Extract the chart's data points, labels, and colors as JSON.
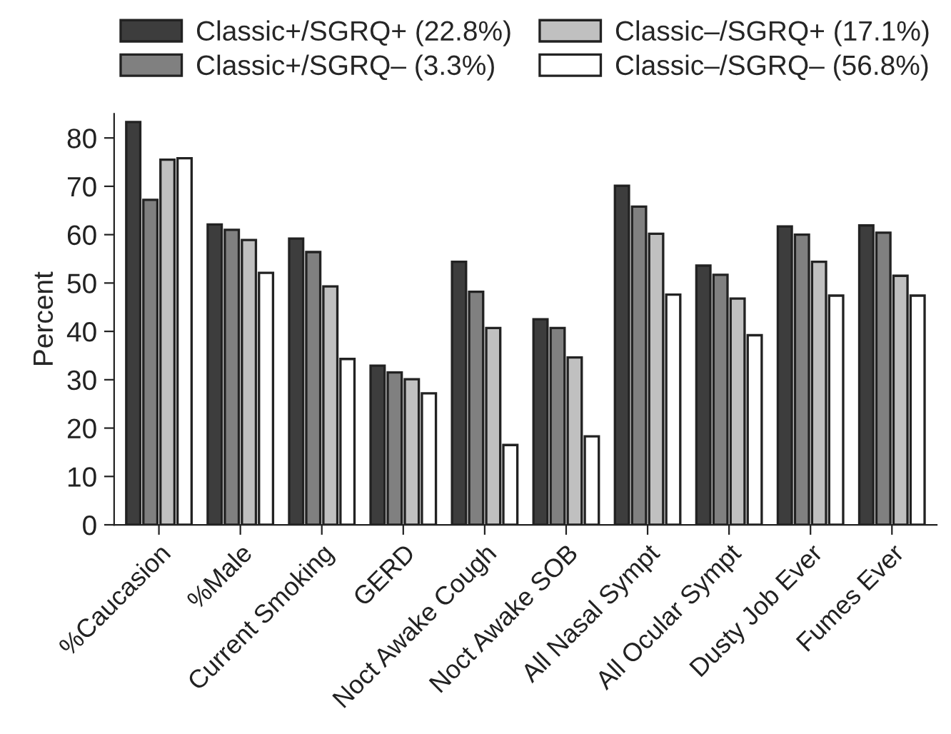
{
  "chart_data": {
    "type": "bar",
    "ylabel": "Percent",
    "categories": [
      "%Caucasion",
      "%Male",
      "Current Smoking",
      "GERD",
      "Noct Awake Cough",
      "Noct Awake SOB",
      "All Nasal Sympt",
      "All Ocular Sympt",
      "Dusty Job Ever",
      "Fumes Ever"
    ],
    "series": [
      {
        "name": "Classic+/SGRQ+ (22.8%)",
        "color": "#3d3d3d",
        "values": [
          83.3,
          62.1,
          59.2,
          32.9,
          54.4,
          42.5,
          70.1,
          53.6,
          61.7,
          61.9
        ]
      },
      {
        "name": "Classic+/SGRQ– (3.3%)",
        "color": "#808080",
        "values": [
          67.2,
          61.0,
          56.4,
          31.5,
          48.2,
          40.7,
          65.8,
          51.7,
          60.0,
          60.4
        ]
      },
      {
        "name": "Classic–/SGRQ+ (17.1%)",
        "color": "#c0c0c0",
        "values": [
          75.5,
          58.9,
          49.3,
          30.1,
          40.7,
          34.6,
          60.2,
          46.8,
          54.4,
          51.5
        ]
      },
      {
        "name": "Classic–/SGRQ– (56.8%)",
        "color": "#ffffff",
        "values": [
          75.8,
          52.1,
          34.3,
          27.2,
          16.5,
          18.3,
          47.6,
          39.2,
          47.4,
          47.4
        ]
      }
    ],
    "ylim": [
      0,
      85
    ],
    "yticks": [
      0,
      10,
      20,
      30,
      40,
      50,
      60,
      70,
      80
    ],
    "grid": false,
    "legend": "top"
  }
}
